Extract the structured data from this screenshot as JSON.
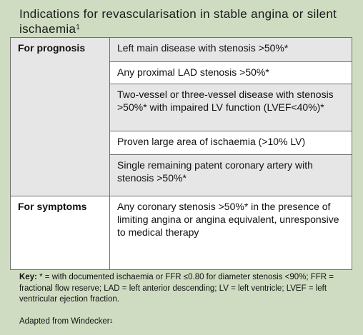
{
  "title": {
    "text": "Indications for revascularisation in stable angina or silent ischaemia",
    "superscript": "1"
  },
  "table": {
    "categories": [
      {
        "label": "For prognosis",
        "indications": [
          "Left main disease with stenosis >50%*",
          "Any proximal LAD stenosis >50%*",
          "Two-vessel or three-vessel disease with stenosis >50%* with impaired LV function (LVEF<40%)*",
          "Proven large area of ischaemia (>10% LV)",
          "Single remaining patent coronary artery with stenosis >50%*"
        ]
      },
      {
        "label": "For symptoms",
        "indications": [
          "Any coronary stenosis >50%* in the presence of limiting angina or angina equivalent, unresponsive to medical therapy"
        ]
      }
    ]
  },
  "key": {
    "label": "Key:",
    "text": " * = with documented ischaemia or FFR ≤0.80 for diameter stenosis <90%; FFR = fractional flow reserve; LAD = left anterior descending; LV = left ventricle; LVEF = left ventricular ejection fraction."
  },
  "source": {
    "text": "Adapted from Windecker",
    "superscript": "1"
  },
  "colors": {
    "background": "#cfdcc1",
    "grey_cell": "#e6e6e6",
    "white_cell": "#ffffff",
    "border": "#6f6f6f"
  }
}
